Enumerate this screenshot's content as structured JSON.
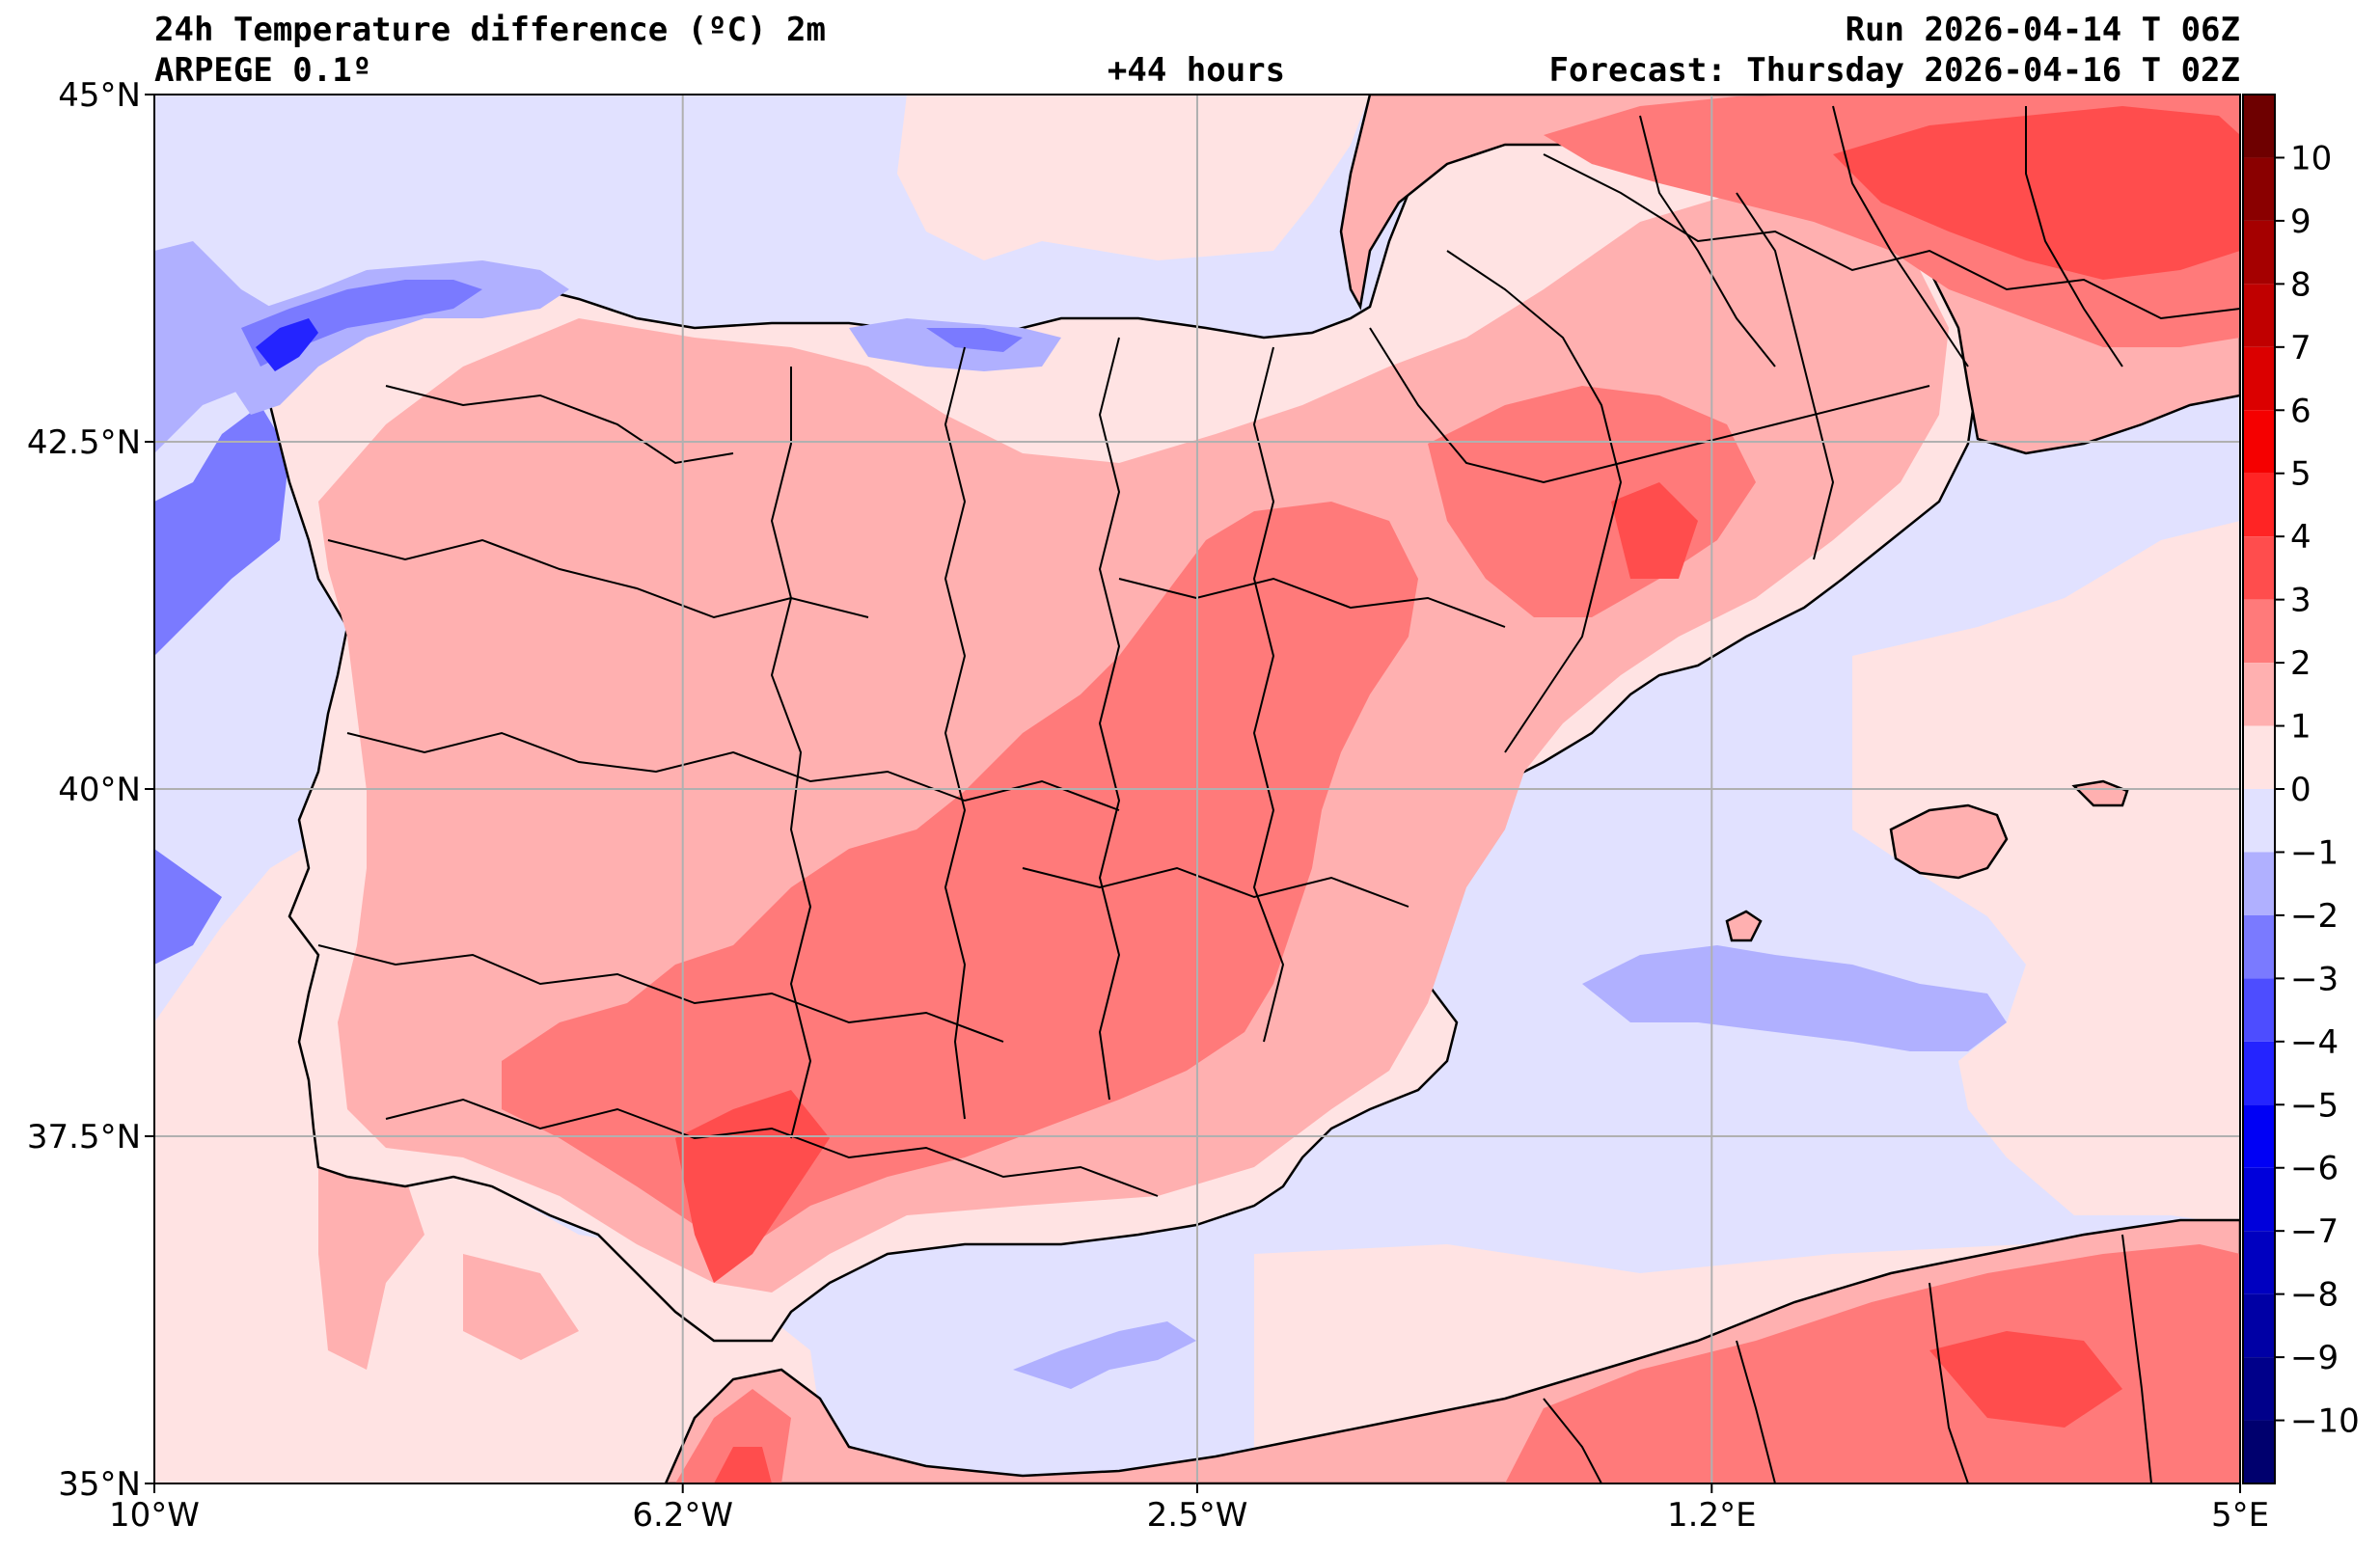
{
  "header": {
    "title": "24h Temperature difference (ºC) 2m",
    "model": "ARPEGE 0.1º",
    "lead": "+44 hours",
    "run": "Run 2026-04-14 T 06Z",
    "forecast": "Forecast: Thursday 2026-04-16 T 02Z"
  },
  "map": {
    "lon_range": [
      -10,
      5
    ],
    "lat_range": [
      35,
      45
    ],
    "lon_ticks": [
      {
        "value": -10,
        "label": "10°W"
      },
      {
        "value": -6.2,
        "label": "6.2°W"
      },
      {
        "value": -2.5,
        "label": "2.5°W"
      },
      {
        "value": 1.2,
        "label": "1.2°E"
      },
      {
        "value": 5,
        "label": "5°E"
      }
    ],
    "lat_ticks": [
      {
        "value": 45,
        "label": "45°N"
      },
      {
        "value": 42.5,
        "label": "42.5°N"
      },
      {
        "value": 40,
        "label": "40°N"
      },
      {
        "value": 37.5,
        "label": "37.5°N"
      },
      {
        "value": 35,
        "label": "35°N"
      }
    ]
  },
  "colorbar": {
    "min": -11,
    "max": 11,
    "bins": [
      {
        "lo": 10,
        "hi": 11,
        "color": "#6e0000"
      },
      {
        "lo": 9,
        "hi": 10,
        "color": "#8a0000"
      },
      {
        "lo": 8,
        "hi": 9,
        "color": "#a50000"
      },
      {
        "lo": 7,
        "hi": 8,
        "color": "#c00000"
      },
      {
        "lo": 6,
        "hi": 7,
        "color": "#db0000"
      },
      {
        "lo": 5,
        "hi": 6,
        "color": "#f50000"
      },
      {
        "lo": 4,
        "hi": 5,
        "color": "#ff2424"
      },
      {
        "lo": 3,
        "hi": 4,
        "color": "#ff4d4d"
      },
      {
        "lo": 2,
        "hi": 3,
        "color": "#ff7a7a"
      },
      {
        "lo": 1,
        "hi": 2,
        "color": "#ffb0b0"
      },
      {
        "lo": 0,
        "hi": 1,
        "color": "#ffe3e3"
      },
      {
        "lo": -1,
        "hi": 0,
        "color": "#e1e1ff"
      },
      {
        "lo": -2,
        "hi": -1,
        "color": "#b0b0ff"
      },
      {
        "lo": -3,
        "hi": -2,
        "color": "#7a7aff"
      },
      {
        "lo": -4,
        "hi": -3,
        "color": "#4d4dff"
      },
      {
        "lo": -5,
        "hi": -4,
        "color": "#2424ff"
      },
      {
        "lo": -6,
        "hi": -5,
        "color": "#0000f5"
      },
      {
        "lo": -7,
        "hi": -6,
        "color": "#0000db"
      },
      {
        "lo": -8,
        "hi": -7,
        "color": "#0000c0"
      },
      {
        "lo": -9,
        "hi": -8,
        "color": "#0000a5"
      },
      {
        "lo": -10,
        "hi": -9,
        "color": "#00008a"
      },
      {
        "lo": -11,
        "hi": -10,
        "color": "#00006e"
      }
    ],
    "ticks": [
      "10",
      "9",
      "8",
      "7",
      "6",
      "5",
      "4",
      "3",
      "2",
      "1",
      "0",
      "−1",
      "−2",
      "−3",
      "−4",
      "−5",
      "−6",
      "−7",
      "−8",
      "−9",
      "−10"
    ],
    "tick_values": [
      10,
      9,
      8,
      7,
      6,
      5,
      4,
      3,
      2,
      1,
      0,
      -1,
      -2,
      -3,
      -4,
      -5,
      -6,
      -7,
      -8,
      -9,
      -10
    ]
  }
}
